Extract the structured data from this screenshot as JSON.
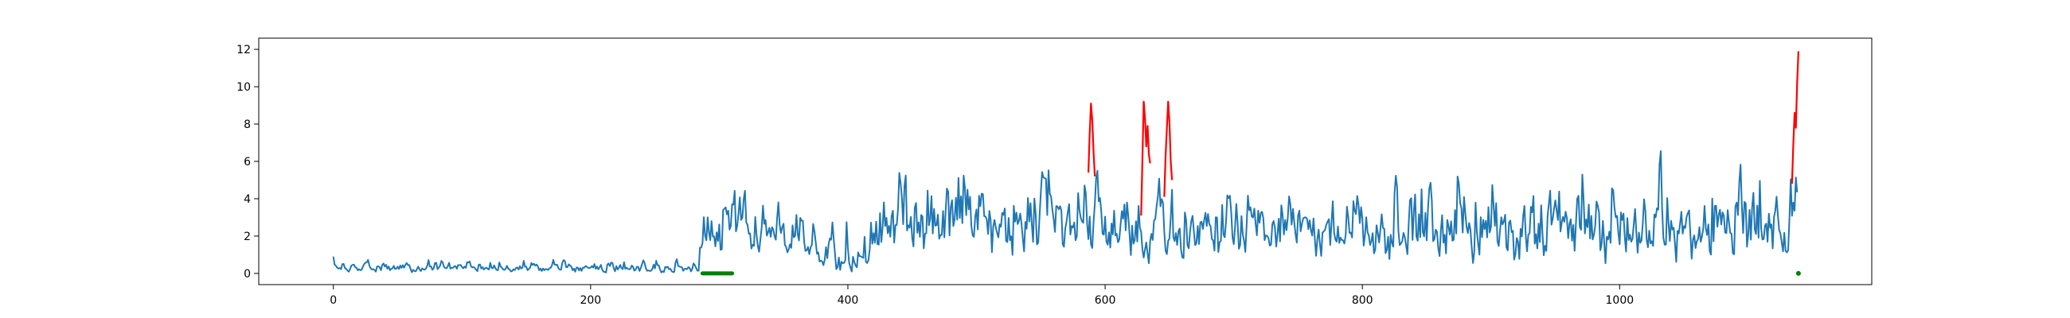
{
  "chart_data": {
    "type": "line",
    "title": "",
    "xlabel": "",
    "ylabel": "",
    "xlim": [
      -58,
      1196
    ],
    "ylim": [
      -0.6,
      12.6
    ],
    "x_ticks": [
      0,
      200,
      400,
      600,
      800,
      1000
    ],
    "y_ticks": [
      0,
      2,
      4,
      6,
      8,
      10,
      12
    ],
    "grid": false,
    "legend": "none",
    "colors": {
      "signal": "#1f77b4",
      "anomaly": "#ff0000",
      "marker": "#008000"
    },
    "signal": {
      "color": "#1f77b4",
      "x_start": 0,
      "x_end": 1138,
      "segments": [
        {
          "x_start": 0,
          "x_end": 285,
          "low": 0.05,
          "high": 1.0,
          "mean": 0.3
        },
        {
          "x_start": 285,
          "x_end": 320,
          "low": 0.5,
          "high": 5.1,
          "mean": 2.3
        },
        {
          "x_start": 320,
          "x_end": 375,
          "low": 0.8,
          "high": 4.6,
          "mean": 2.0
        },
        {
          "x_start": 375,
          "x_end": 420,
          "low": 0.1,
          "high": 4.3,
          "mean": 0.7
        },
        {
          "x_start": 420,
          "x_end": 560,
          "low": 0.2,
          "high": 7.1,
          "mean": 2.7
        },
        {
          "x_start": 560,
          "x_end": 660,
          "low": 0.2,
          "high": 6.5,
          "mean": 2.6
        },
        {
          "x_start": 660,
          "x_end": 820,
          "low": 0.2,
          "high": 5.8,
          "mean": 2.4
        },
        {
          "x_start": 820,
          "x_end": 1138,
          "low": 0.1,
          "high": 7.1,
          "mean": 2.4
        }
      ]
    },
    "anomaly_segments": [
      {
        "color": "#ff0000",
        "x": [
          587,
          588,
          589,
          590,
          591,
          592
        ],
        "y": [
          5.4,
          7.5,
          9.1,
          8.2,
          6.5,
          5.2
        ]
      },
      {
        "color": "#ff0000",
        "x": [
          628,
          630,
          631,
          632,
          633,
          634,
          635
        ],
        "y": [
          3.1,
          9.2,
          8.3,
          6.8,
          7.9,
          6.4,
          5.9
        ]
      },
      {
        "color": "#ff0000",
        "x": [
          646,
          647,
          649,
          650,
          651,
          652
        ],
        "y": [
          4.1,
          6.3,
          9.2,
          8.1,
          6.0,
          5.0
        ]
      },
      {
        "color": "#ff0000",
        "x": [
          1134,
          1135,
          1136,
          1137,
          1138,
          1139
        ],
        "y": [
          4.8,
          6.9,
          8.6,
          7.8,
          10.2,
          11.9
        ]
      }
    ],
    "markers": [
      {
        "color": "#008000",
        "x_start": 287,
        "x_end": 310,
        "y": 0
      },
      {
        "color": "#008000",
        "x_start": 1139,
        "x_end": 1139,
        "y": 0
      }
    ]
  }
}
